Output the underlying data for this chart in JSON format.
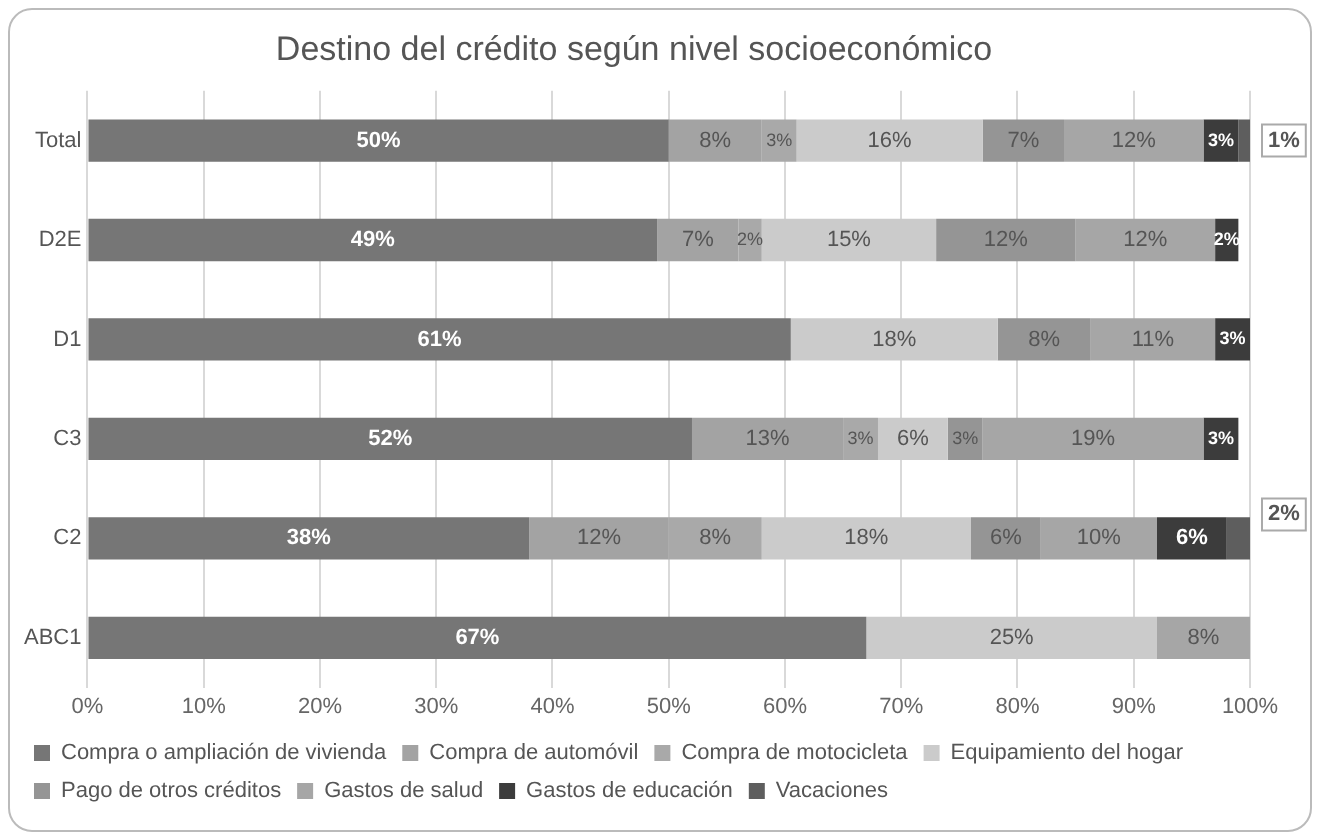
{
  "chart_data": {
    "type": "bar",
    "orientation": "horizontal",
    "stacked": true,
    "title": "Destino del crédito según nivel socioeconómico",
    "categories": [
      "Total",
      "D2E",
      "D1",
      "C3",
      "C2",
      "ABC1"
    ],
    "series": [
      {
        "name": "Compra o ampliación de vivienda",
        "color": "#767676",
        "values": [
          50,
          49,
          60.5,
          52,
          38,
          67
        ],
        "value_labels": [
          "50%",
          "49%",
          "61%",
          "52%",
          "38%",
          "67%"
        ]
      },
      {
        "name": "Compra de automóvil",
        "color": "#a3a3a3",
        "values": [
          8,
          7,
          null,
          13,
          12,
          null
        ],
        "value_labels": [
          "8%",
          "7%",
          null,
          "13%",
          "12%",
          null
        ]
      },
      {
        "name": "Compra de motocicleta",
        "color": "#a9a9a9",
        "values": [
          3,
          2,
          null,
          3,
          8,
          null
        ],
        "value_labels": [
          "3%",
          "2%",
          null,
          "3%",
          "8%",
          null
        ]
      },
      {
        "name": "Equipamiento del hogar",
        "color": "#cbcbcb",
        "values": [
          16,
          15,
          17.8,
          6,
          18,
          25
        ],
        "value_labels": [
          "16%",
          "15%",
          "18%",
          "6%",
          "18%",
          "25%"
        ]
      },
      {
        "name": "Pago de otros créditos",
        "color": "#959595",
        "values": [
          7,
          12,
          8,
          3,
          6,
          null
        ],
        "value_labels": [
          "7%",
          "12%",
          "8%",
          "3%",
          "6%",
          null
        ]
      },
      {
        "name": "Gastos de salud",
        "color": "#a6a6a6",
        "values": [
          12,
          12,
          10.7,
          19,
          10,
          8
        ],
        "value_labels": [
          "12%",
          "12%",
          "11%",
          "19%",
          "10%",
          "8%"
        ]
      },
      {
        "name": "Gastos de educación",
        "color": "#3c3c3c",
        "values": [
          3,
          2,
          3,
          3,
          6,
          null
        ],
        "value_labels": [
          "3%",
          "2%",
          "3%",
          "3%",
          "6%",
          null
        ]
      },
      {
        "name": "Vacaciones",
        "color": "#5e5e5e",
        "values": [
          1,
          null,
          null,
          null,
          2,
          null
        ],
        "value_labels": [
          "1%",
          null,
          null,
          null,
          "2%",
          null
        ]
      }
    ],
    "xlim": [
      0,
      100
    ],
    "xticks": [
      {
        "value": 0,
        "label": "0%"
      },
      {
        "value": 10,
        "label": "10%"
      },
      {
        "value": 20,
        "label": "20%"
      },
      {
        "value": 30,
        "label": "30%"
      },
      {
        "value": 40,
        "label": "40%"
      },
      {
        "value": 50,
        "label": "50%"
      },
      {
        "value": 60,
        "label": "60%"
      },
      {
        "value": 70,
        "label": "70%"
      },
      {
        "value": 80,
        "label": "80%"
      },
      {
        "value": 90,
        "label": "90%"
      },
      {
        "value": 100,
        "label": "100%"
      }
    ],
    "grid": "x",
    "legend": "bottom"
  }
}
